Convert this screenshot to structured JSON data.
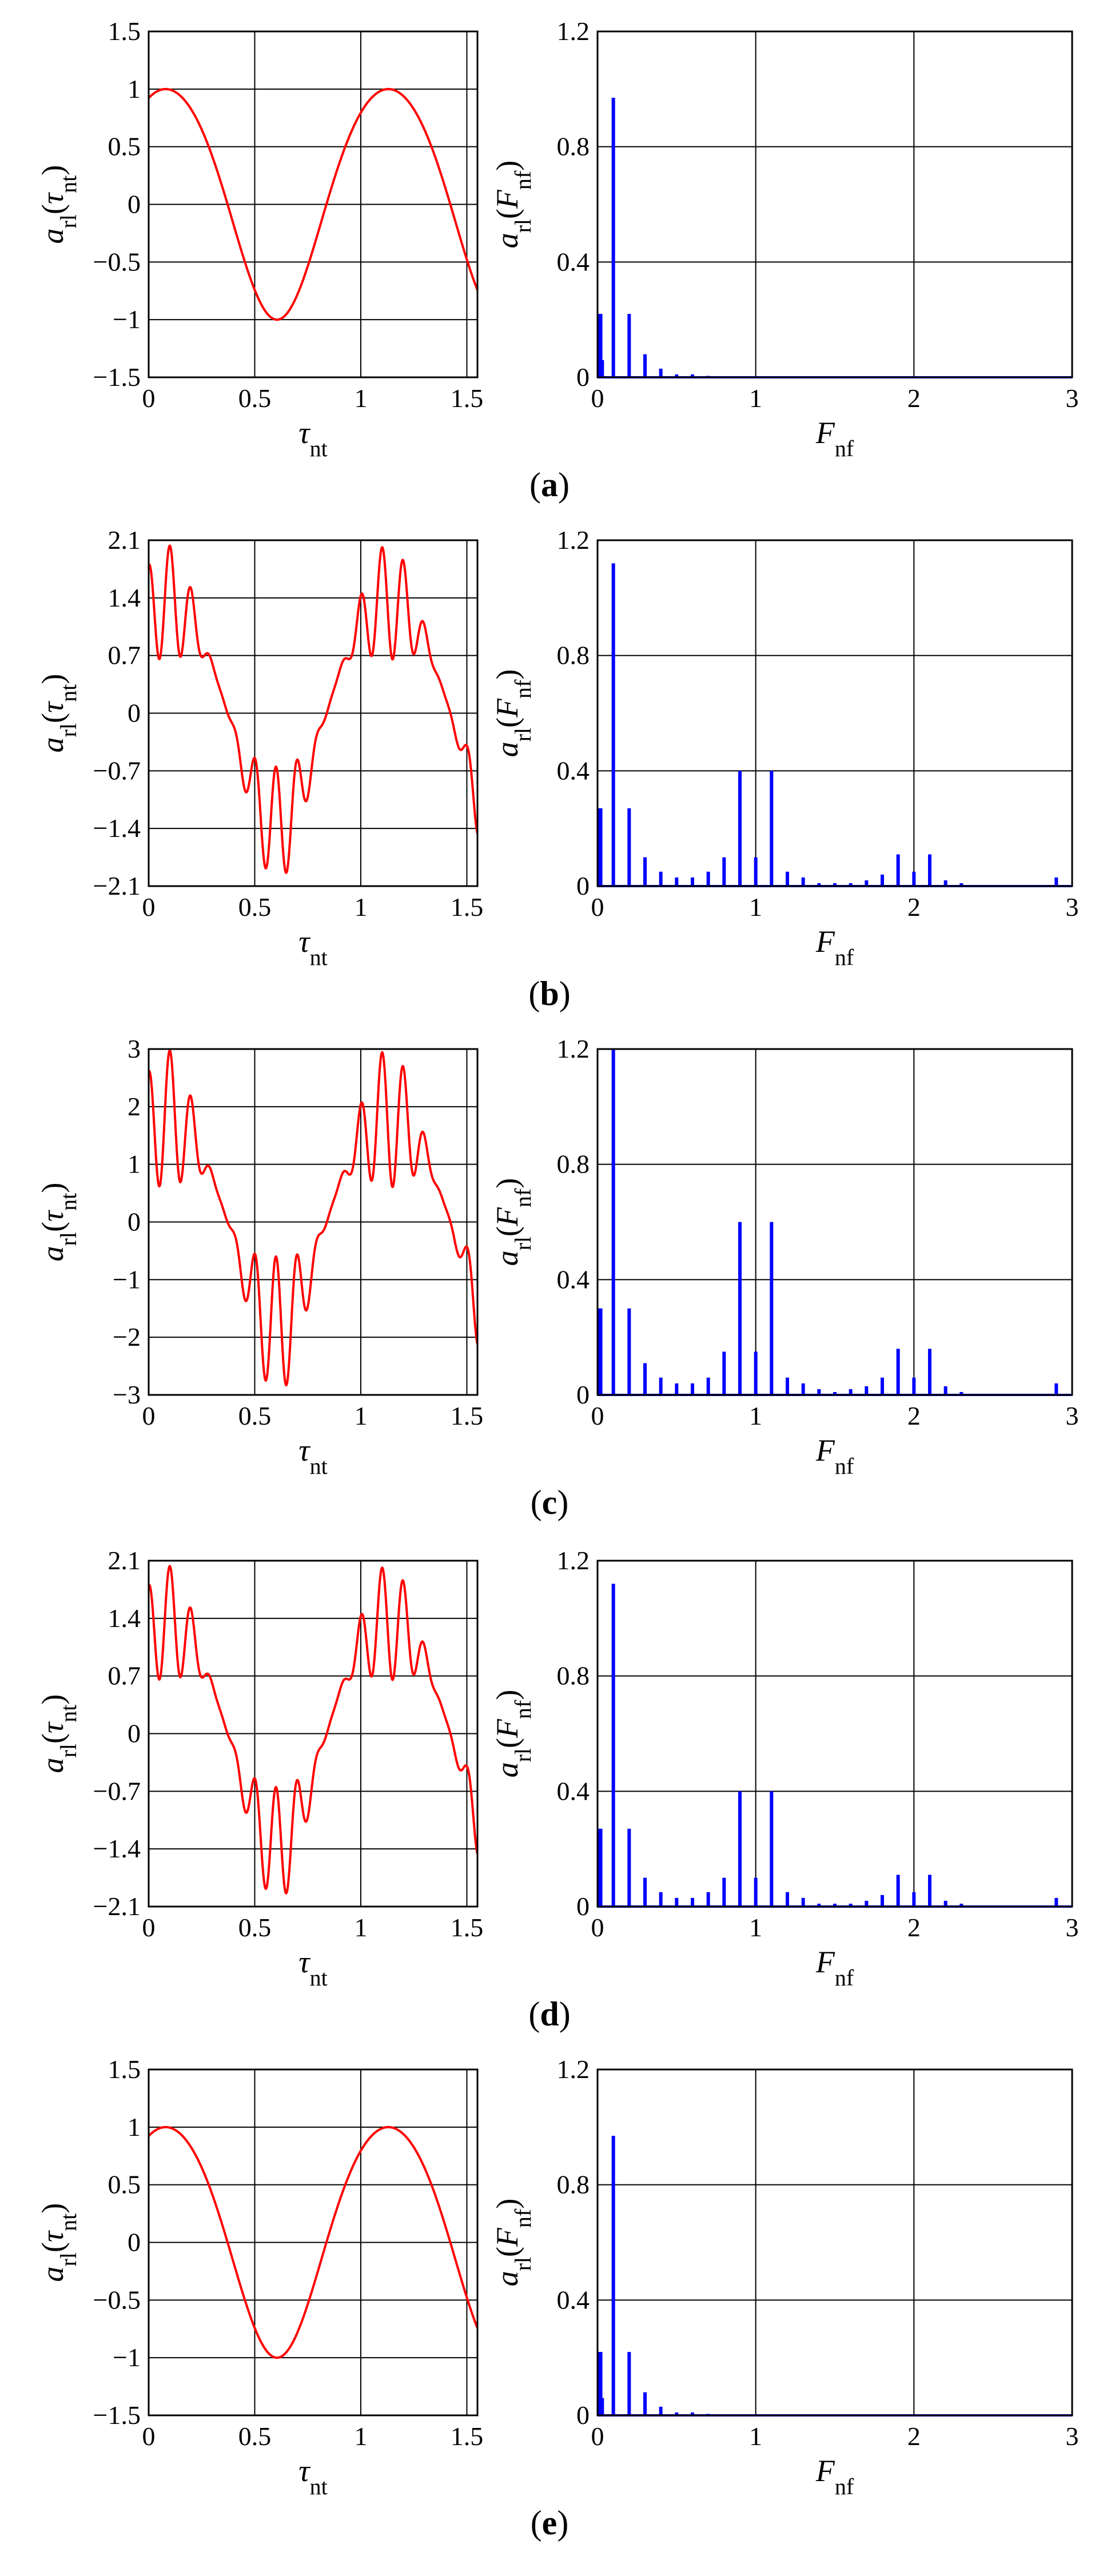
{
  "figure": {
    "panels": [
      {
        "label_open": "(",
        "label_letter": "a",
        "label_close": ")",
        "time": {
          "ylabel": {
            "var": "a",
            "sub": "rl",
            "arg": "τ",
            "argsub": "nt"
          },
          "xlabel": {
            "var": "τ",
            "sub": "nt"
          },
          "xticks": [
            "0",
            "0.5",
            "1",
            "1.5"
          ],
          "yticks": [
            "1.5",
            "1",
            "0.5",
            "0",
            "−0.5",
            "−1",
            "−1.5"
          ]
        },
        "freq": {
          "ylabel": {
            "var": "a",
            "sub": "rl",
            "arg": "F",
            "argsub": "nf"
          },
          "xlabel": {
            "var": "F",
            "sub": "nf"
          },
          "xticks": [
            "0",
            "1",
            "2",
            "3"
          ],
          "yticks": [
            "1.2",
            "0.8",
            "0.4",
            "0"
          ]
        }
      },
      {
        "label_open": "(",
        "label_letter": "b",
        "label_close": ")",
        "time": {
          "ylabel": {
            "var": "a",
            "sub": "rl",
            "arg": "τ",
            "argsub": "nt"
          },
          "xlabel": {
            "var": "τ",
            "sub": "nt"
          },
          "xticks": [
            "0",
            "0.5",
            "1",
            "1.5"
          ],
          "yticks": [
            "2.1",
            "1.4",
            "0.7",
            "0",
            "−0.7",
            "−1.4",
            "−2.1"
          ]
        },
        "freq": {
          "ylabel": {
            "var": "a",
            "sub": "rl",
            "arg": "F",
            "argsub": "nf"
          },
          "xlabel": {
            "var": "F",
            "sub": "nf"
          },
          "xticks": [
            "0",
            "1",
            "2",
            "3"
          ],
          "yticks": [
            "1.2",
            "0.8",
            "0.4",
            "0"
          ]
        }
      },
      {
        "label_open": "(",
        "label_letter": "c",
        "label_close": ")",
        "time": {
          "ylabel": {
            "var": "a",
            "sub": "rl",
            "arg": "τ",
            "argsub": "nt"
          },
          "xlabel": {
            "var": "τ",
            "sub": "nt"
          },
          "xticks": [
            "0",
            "0.5",
            "1",
            "1.5"
          ],
          "yticks": [
            "3",
            "2",
            "1",
            "0",
            "−1",
            "−2",
            "−3"
          ]
        },
        "freq": {
          "ylabel": {
            "var": "a",
            "sub": "rl",
            "arg": "F",
            "argsub": "nf"
          },
          "xlabel": {
            "var": "F",
            "sub": "nf"
          },
          "xticks": [
            "0",
            "1",
            "2",
            "3"
          ],
          "yticks": [
            "1.2",
            "0.8",
            "0.4",
            "0"
          ]
        }
      },
      {
        "label_open": "(",
        "label_letter": "d",
        "label_close": ")",
        "time": {
          "ylabel": {
            "var": "a",
            "sub": "rl",
            "arg": "τ",
            "argsub": "nt"
          },
          "xlabel": {
            "var": "τ",
            "sub": "nt"
          },
          "xticks": [
            "0",
            "0.5",
            "1",
            "1.5"
          ],
          "yticks": [
            "2.1",
            "1.4",
            "0.7",
            "0",
            "−0.7",
            "−1.4",
            "−2.1"
          ]
        },
        "freq": {
          "ylabel": {
            "var": "a",
            "sub": "rl",
            "arg": "F",
            "argsub": "nf"
          },
          "xlabel": {
            "var": "F",
            "sub": "nf"
          },
          "xticks": [
            "0",
            "1",
            "2",
            "3"
          ],
          "yticks": [
            "1.2",
            "0.8",
            "0.4",
            "0"
          ]
        }
      },
      {
        "label_open": "(",
        "label_letter": "e",
        "label_close": ")",
        "time": {
          "ylabel": {
            "var": "a",
            "sub": "rl",
            "arg": "τ",
            "argsub": "nt"
          },
          "xlabel": {
            "var": "τ",
            "sub": "nt"
          },
          "xticks": [
            "0",
            "0.5",
            "1",
            "1.5"
          ],
          "yticks": [
            "1.5",
            "1",
            "0.5",
            "0",
            "−0.5",
            "−1",
            "−1.5"
          ]
        },
        "freq": {
          "ylabel": {
            "var": "a",
            "sub": "rl",
            "arg": "F",
            "argsub": "nf"
          },
          "xlabel": {
            "var": "F",
            "sub": "nf"
          },
          "xticks": [
            "0",
            "1",
            "2",
            "3"
          ],
          "yticks": [
            "1.2",
            "0.8",
            "0.4",
            "0"
          ]
        }
      }
    ]
  },
  "chart_data": [
    {
      "type": "line",
      "panel": "a",
      "title": "",
      "xlabel": "τnt",
      "ylabel": "arl(τnt)",
      "xlim": [
        0,
        1.55
      ],
      "ylim": [
        -1.5,
        1.5
      ],
      "grid": true,
      "color": "#ff0000",
      "series": [
        {
          "name": "arl(τnt)",
          "base": 1.0,
          "ripple": 0.0
        }
      ]
    },
    {
      "type": "bar",
      "panel": "a",
      "title": "",
      "xlabel": "Fnf",
      "ylabel": "arl(Fnf)",
      "xlim": [
        0,
        3
      ],
      "ylim": [
        0,
        1.2
      ],
      "grid": true,
      "color": "#0000ff",
      "x": [
        0.01,
        0.02,
        0.03,
        0.1,
        0.2,
        0.3,
        0.4,
        0.5,
        0.6,
        0.7
      ],
      "values": [
        0.22,
        0.22,
        0.06,
        0.97,
        0.22,
        0.08,
        0.03,
        0.01,
        0.01,
        0.005
      ]
    },
    {
      "type": "line",
      "panel": "b",
      "title": "",
      "xlabel": "τnt",
      "ylabel": "arl(τnt)",
      "xlim": [
        0,
        1.55
      ],
      "ylim": [
        -2.1,
        2.1
      ],
      "grid": true,
      "color": "#ff0000",
      "series": [
        {
          "name": "arl(τnt)",
          "base": 1.35,
          "ripple": 0.7
        }
      ]
    },
    {
      "type": "bar",
      "panel": "b",
      "title": "",
      "xlabel": "Fnf",
      "ylabel": "arl(Fnf)",
      "xlim": [
        0,
        3
      ],
      "ylim": [
        0,
        1.2
      ],
      "grid": true,
      "color": "#0000ff",
      "x": [
        0.01,
        0.02,
        0.1,
        0.2,
        0.3,
        0.4,
        0.5,
        0.6,
        0.7,
        0.8,
        0.9,
        1.0,
        1.1,
        1.2,
        1.3,
        1.4,
        1.5,
        1.6,
        1.7,
        1.8,
        1.9,
        2.0,
        2.1,
        2.2,
        2.3,
        2.9
      ],
      "values": [
        0.27,
        0.27,
        1.12,
        0.27,
        0.1,
        0.05,
        0.03,
        0.03,
        0.05,
        0.1,
        0.4,
        0.1,
        0.4,
        0.05,
        0.03,
        0.01,
        0.01,
        0.01,
        0.02,
        0.04,
        0.11,
        0.05,
        0.11,
        0.02,
        0.01,
        0.03
      ]
    },
    {
      "type": "line",
      "panel": "c",
      "title": "",
      "xlabel": "τnt",
      "ylabel": "arl(τnt)",
      "xlim": [
        0,
        1.55
      ],
      "ylim": [
        -3,
        3
      ],
      "grid": true,
      "color": "#ff0000",
      "series": [
        {
          "name": "arl(τnt)",
          "base": 1.8,
          "ripple": 1.2
        }
      ]
    },
    {
      "type": "bar",
      "panel": "c",
      "title": "",
      "xlabel": "Fnf",
      "ylabel": "arl(Fnf)",
      "xlim": [
        0,
        3
      ],
      "ylim": [
        0,
        1.2
      ],
      "grid": true,
      "color": "#0000ff",
      "x": [
        0.01,
        0.02,
        0.1,
        0.2,
        0.3,
        0.4,
        0.5,
        0.6,
        0.7,
        0.8,
        0.9,
        1.0,
        1.1,
        1.2,
        1.3,
        1.4,
        1.5,
        1.6,
        1.7,
        1.8,
        1.9,
        2.0,
        2.1,
        2.2,
        2.3,
        2.9
      ],
      "values": [
        0.3,
        0.3,
        1.2,
        0.3,
        0.11,
        0.06,
        0.04,
        0.04,
        0.06,
        0.15,
        0.6,
        0.15,
        0.6,
        0.06,
        0.04,
        0.02,
        0.01,
        0.02,
        0.03,
        0.06,
        0.16,
        0.06,
        0.16,
        0.03,
        0.01,
        0.04
      ]
    },
    {
      "type": "line",
      "panel": "d",
      "title": "",
      "xlabel": "τnt",
      "ylabel": "arl(τnt)",
      "xlim": [
        0,
        1.55
      ],
      "ylim": [
        -2.1,
        2.1
      ],
      "grid": true,
      "color": "#ff0000",
      "series": [
        {
          "name": "arl(τnt)",
          "base": 1.35,
          "ripple": 0.7
        }
      ]
    },
    {
      "type": "bar",
      "panel": "d",
      "title": "",
      "xlabel": "Fnf",
      "ylabel": "arl(Fnf)",
      "xlim": [
        0,
        3
      ],
      "ylim": [
        0,
        1.2
      ],
      "grid": true,
      "color": "#0000ff",
      "x": [
        0.01,
        0.02,
        0.1,
        0.2,
        0.3,
        0.4,
        0.5,
        0.6,
        0.7,
        0.8,
        0.9,
        1.0,
        1.1,
        1.2,
        1.3,
        1.4,
        1.5,
        1.6,
        1.7,
        1.8,
        1.9,
        2.0,
        2.1,
        2.2,
        2.3,
        2.9
      ],
      "values": [
        0.27,
        0.27,
        1.12,
        0.27,
        0.1,
        0.05,
        0.03,
        0.03,
        0.05,
        0.1,
        0.4,
        0.1,
        0.4,
        0.05,
        0.03,
        0.01,
        0.01,
        0.01,
        0.02,
        0.04,
        0.11,
        0.05,
        0.11,
        0.02,
        0.01,
        0.03
      ]
    },
    {
      "type": "line",
      "panel": "e",
      "title": "",
      "xlabel": "τnt",
      "ylabel": "arl(τnt)",
      "xlim": [
        0,
        1.55
      ],
      "ylim": [
        -1.5,
        1.5
      ],
      "grid": true,
      "color": "#ff0000",
      "series": [
        {
          "name": "arl(τnt)",
          "base": 1.0,
          "ripple": 0.0
        }
      ]
    },
    {
      "type": "bar",
      "panel": "e",
      "title": "",
      "xlabel": "Fnf",
      "ylabel": "arl(Fnf)",
      "xlim": [
        0,
        3
      ],
      "ylim": [
        0,
        1.2
      ],
      "grid": true,
      "color": "#0000ff",
      "x": [
        0.01,
        0.02,
        0.03,
        0.1,
        0.2,
        0.3,
        0.4,
        0.5,
        0.6,
        0.7
      ],
      "values": [
        0.22,
        0.22,
        0.06,
        0.97,
        0.22,
        0.08,
        0.03,
        0.01,
        0.01,
        0.005
      ]
    }
  ]
}
